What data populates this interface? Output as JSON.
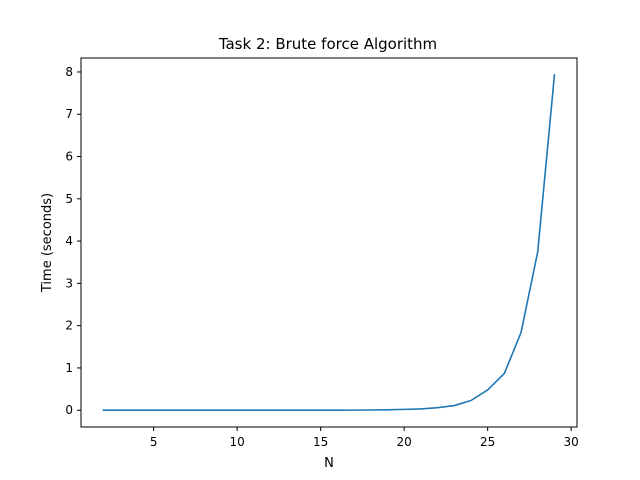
{
  "chart_data": {
    "type": "line",
    "title": "Task 2: Brute force Algorithm",
    "xlabel": "N",
    "ylabel": "Time (seconds)",
    "xlim": [
      0.65,
      30.35
    ],
    "ylim": [
      -0.397,
      8.33
    ],
    "xticks": [
      5,
      10,
      15,
      20,
      25,
      30
    ],
    "yticks": [
      0,
      1,
      2,
      3,
      4,
      5,
      6,
      7,
      8
    ],
    "grid": false,
    "series": [
      {
        "color": "#1f77b4",
        "x": [
          2,
          3,
          4,
          5,
          6,
          7,
          8,
          9,
          10,
          11,
          12,
          13,
          14,
          15,
          16,
          17,
          18,
          19,
          20,
          21,
          22,
          23,
          24,
          25,
          26,
          27,
          28,
          29
        ],
        "y": [
          0,
          0,
          0,
          0,
          0,
          0,
          0,
          0,
          0,
          0,
          0,
          0,
          0,
          0,
          0.001,
          0.002,
          0.005,
          0.01,
          0.02,
          0.03,
          0.06,
          0.11,
          0.23,
          0.48,
          0.87,
          1.84,
          3.75,
          7.93
        ]
      }
    ]
  }
}
